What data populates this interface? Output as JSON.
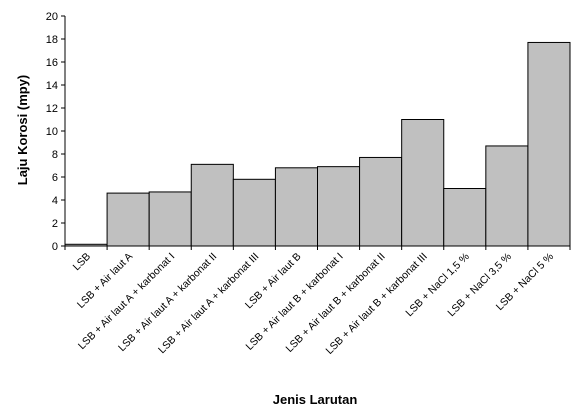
{
  "chart_data": {
    "type": "bar",
    "categories": [
      "LSB",
      "LSB + Air laut A",
      "LSB + Air laut A + karbonat I",
      "LSB + Air laut A + karbonat II",
      "LSB + Air laut A + karbonat III",
      "LSB + Air laut B",
      "LSB + Air laut B + karbonat I",
      "LSB + Air laut B + karbonat II",
      "LSB + Air laut B + karbonat III",
      "LSB + NaCl 1,5 %",
      "LSB + NaCl 3,5 %",
      "LSB + NaCl 5 %"
    ],
    "values": [
      0.15,
      4.6,
      4.7,
      7.1,
      5.8,
      6.8,
      6.9,
      7.7,
      11.0,
      5.0,
      8.7,
      17.7
    ],
    "xlabel": "Jenis Larutan",
    "ylabel": "Laju Korosi (mpy)",
    "ylim": [
      0,
      20
    ],
    "yticks": [
      0,
      2,
      4,
      6,
      8,
      10,
      12,
      14,
      16,
      18,
      20
    ],
    "grid": false,
    "legend": "none",
    "bar_color": "#c0c0c0"
  }
}
